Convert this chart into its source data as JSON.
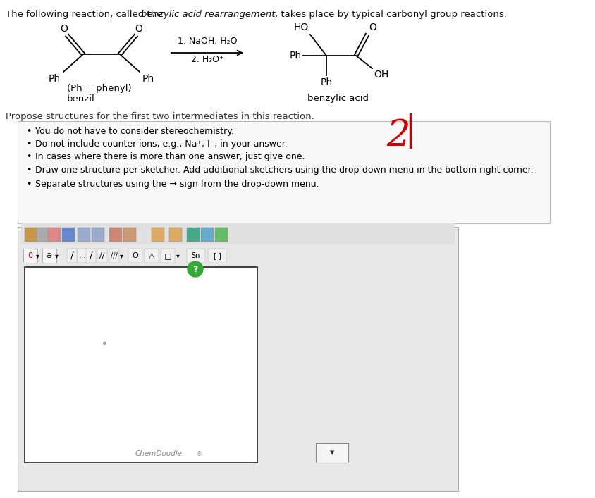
{
  "bg_color": "#ffffff",
  "page_bg": "#f0f0f0",
  "bullet_box_bg": "#f5f5f5",
  "bullet_box_border": "#cccccc",
  "bullet_points": [
    "You do not have to consider stereochemistry.",
    "Do not include counter-ions, e.g., Na⁺, I⁻, in your answer.",
    "In cases where there is more than one answer, just give one.",
    "Draw one structure per sketcher. Add additional sketchers using the drop-down menu in the bottom right corner.",
    "Separate structures using the → sign from the drop-down menu."
  ],
  "propose_text": "Propose structures for the first two intermediates in this reaction.",
  "chemdoodle_label": "ChemDoodle",
  "toolbar_bg": "#e0e0e0",
  "toolbar_bg2": "#f0f0f0",
  "sketcher_bg": "#ffffff",
  "lower_area_bg": "#ebebeb"
}
